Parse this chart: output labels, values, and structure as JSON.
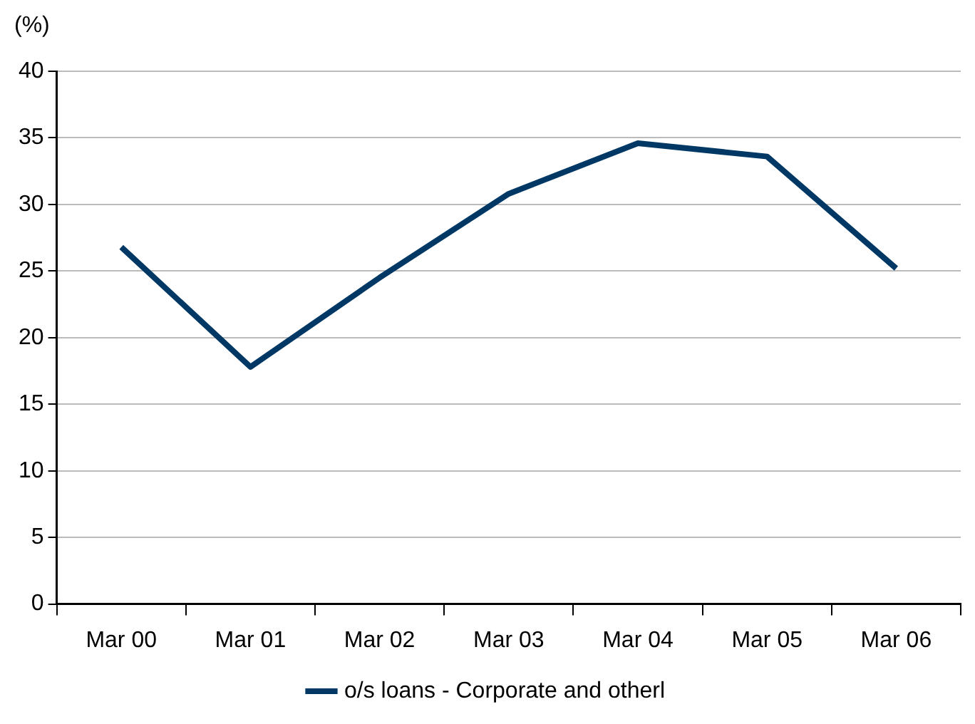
{
  "chart_data": {
    "type": "line",
    "ylabel": "(%)",
    "categories": [
      "Mar 00",
      "Mar 01",
      "Mar 02",
      "Mar 03",
      "Mar 04",
      "Mar 05",
      "Mar 06"
    ],
    "series": [
      {
        "name": "o/s loans - Corporate and otherl",
        "color": "#003865",
        "values": [
          26.8,
          17.8,
          24.5,
          30.8,
          34.6,
          33.6,
          25.2
        ]
      }
    ],
    "ylim": [
      0,
      40
    ],
    "yticks": [
      0,
      5,
      10,
      15,
      20,
      25,
      30,
      35,
      40
    ],
    "grid": "y",
    "legend": "bottom",
    "marker": "none",
    "line_style": "solid"
  }
}
